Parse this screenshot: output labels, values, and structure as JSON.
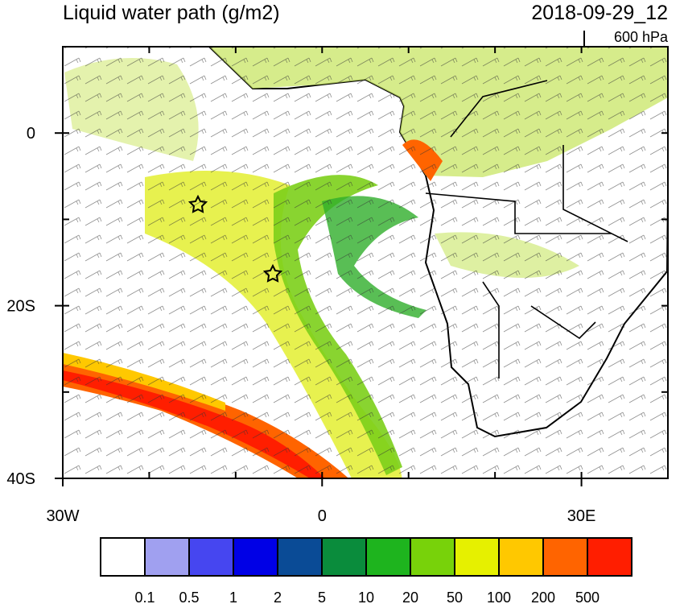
{
  "header": {
    "title": "Liquid water path (g/m2)",
    "date": "2018-09-29_12",
    "level": "600 hPa"
  },
  "map": {
    "lonlim": [
      -30,
      40
    ],
    "latlim": [
      -40,
      10
    ],
    "lat_labels": [
      {
        "value": 0,
        "label": "0"
      },
      {
        "value": -20,
        "label": "20S"
      },
      {
        "value": -40,
        "label": "40S"
      }
    ],
    "lon_labels": [
      {
        "value": -30,
        "label": "30W"
      },
      {
        "value": 0,
        "label": "0"
      },
      {
        "value": 30,
        "label": "30E"
      }
    ]
  },
  "colorbar": {
    "colors": [
      "#ffffff",
      "#a0a0f0",
      "#4646f0",
      "#0000e6",
      "#0a4b96",
      "#0a8c3c",
      "#1eb41e",
      "#78d20a",
      "#e6f000",
      "#ffc800",
      "#ff6400",
      "#ff1e00"
    ],
    "labels": [
      "0.1",
      "0.5",
      "1",
      "2",
      "5",
      "10",
      "20",
      "50",
      "100",
      "200",
      "500"
    ]
  }
}
